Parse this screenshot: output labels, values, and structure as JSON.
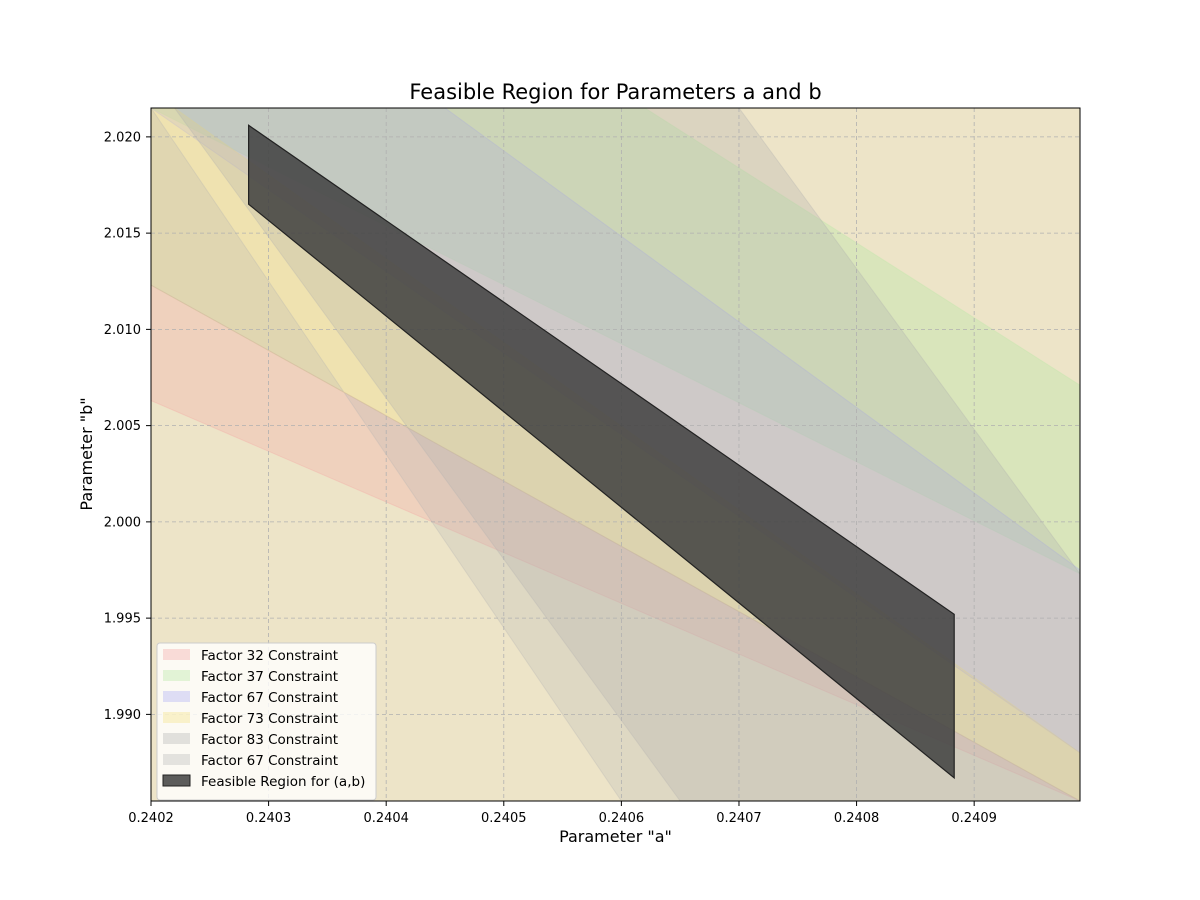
{
  "chart_data": {
    "type": "area",
    "title": "Feasible Region for Parameters a and b",
    "xlabel": "Parameter \"a\"",
    "ylabel": "Parameter \"b\"",
    "xlim": [
      0.2402,
      0.24099
    ],
    "ylim": [
      1.9855,
      2.0215
    ],
    "xticks": [
      "0.2402",
      "0.2403",
      "0.2404",
      "0.2405",
      "0.2406",
      "0.2407",
      "0.2408",
      "0.2409"
    ],
    "xtick_values": [
      0.2402,
      0.2403,
      0.2404,
      0.2405,
      0.2406,
      0.2407,
      0.2408,
      0.2409
    ],
    "yticks": [
      "1.990",
      "1.995",
      "2.000",
      "2.005",
      "2.010",
      "2.015",
      "2.020"
    ],
    "ytick_values": [
      1.99,
      1.995,
      2.0,
      2.005,
      2.01,
      2.015,
      2.02
    ],
    "grid": true,
    "legend_position": "lower-left",
    "background_fill": {
      "color": "#ede4c8"
    },
    "constraints": [
      {
        "name": "Factor 32 Constraint",
        "color": "#f4a0a0",
        "opacity": 0.28,
        "polygon": [
          [
            0.2402,
            2.0123
          ],
          [
            0.24099,
            1.9855
          ],
          [
            0.24099,
            1.9855
          ],
          [
            0.2402,
            2.0063
          ]
        ]
      },
      {
        "name": "Factor 37 Constraint",
        "color": "#b9e8a6",
        "opacity": 0.38,
        "polygon": [
          [
            0.2402,
            2.0215
          ],
          [
            0.24062,
            2.0215
          ],
          [
            0.24099,
            2.0071
          ],
          [
            0.24099,
            1.9973
          ],
          [
            0.2402,
            2.0215
          ]
        ]
      },
      {
        "name": "Factor 67 Constraint",
        "color": "#a6a6f4",
        "opacity": 0.25,
        "polygon": [
          [
            0.2402,
            2.0215
          ],
          [
            0.24045,
            2.0215
          ],
          [
            0.24099,
            1.9975
          ],
          [
            0.24099,
            1.988
          ],
          [
            0.2402,
            2.0215
          ]
        ]
      },
      {
        "name": "Factor 73 Constraint",
        "color": "#f4df7a",
        "opacity": 0.3,
        "polygon": [
          [
            0.2402,
            2.0215
          ],
          [
            0.24022,
            2.0215
          ],
          [
            0.24099,
            1.988
          ],
          [
            0.24099,
            1.9855
          ],
          [
            0.2402,
            2.0123
          ]
        ]
      },
      {
        "name": "Factor 83 Constraint",
        "color": "#aeaeae",
        "opacity": 0.28,
        "polygon": [
          [
            0.24022,
            2.0215
          ],
          [
            0.2407,
            2.0215
          ],
          [
            0.24099,
            1.9973
          ],
          [
            0.24099,
            1.9855
          ],
          [
            0.24065,
            1.9855
          ]
        ]
      },
      {
        "name": "Factor 67 Constraint",
        "color": "#b4b4b4",
        "opacity": 0.25,
        "polygon": [
          [
            0.2402,
            2.0123
          ],
          [
            0.24099,
            1.9855
          ],
          [
            0.2406,
            1.9855
          ],
          [
            0.2402,
            2.0215
          ]
        ]
      }
    ],
    "feasible_region": {
      "name": "Feasible Region for (a,b)",
      "color": "#3f3f3f",
      "opacity": 0.85,
      "polygon": [
        [
          0.240283,
          2.0206
        ],
        [
          0.240883,
          1.9952
        ],
        [
          0.240883,
          1.9867
        ],
        [
          0.240283,
          2.0165
        ]
      ]
    }
  }
}
